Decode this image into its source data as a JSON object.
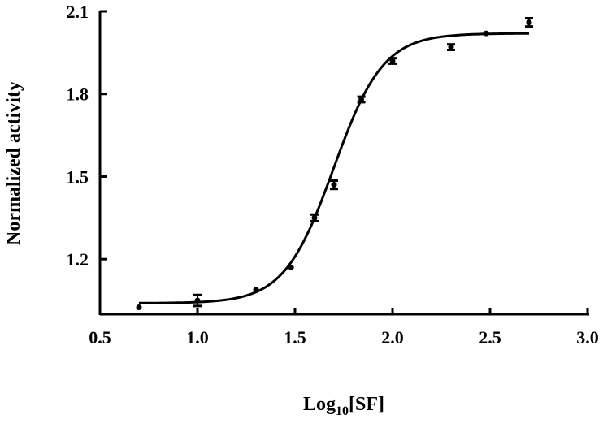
{
  "chart_data": {
    "type": "scatter",
    "title": "",
    "xlabel_main": "Log",
    "xlabel_sub": "10",
    "xlabel_rest": "[SF]",
    "ylabel": "Normalized activity",
    "xlim": [
      0.5,
      3.0
    ],
    "ylim": [
      1.0,
      2.1
    ],
    "x_ticks": [
      "0.5",
      "1.0",
      "1.5",
      "2.0",
      "2.5",
      "3.0"
    ],
    "y_ticks": [
      "1.2",
      "1.5",
      "1.8",
      "2.1"
    ],
    "grid": false,
    "points": [
      {
        "x": 0.7,
        "y": 1.025,
        "err": 0.0
      },
      {
        "x": 1.0,
        "y": 1.05,
        "err": 0.02
      },
      {
        "x": 1.3,
        "y": 1.09,
        "err": 0.0
      },
      {
        "x": 1.48,
        "y": 1.17,
        "err": 0.0
      },
      {
        "x": 1.6,
        "y": 1.35,
        "err": 0.012
      },
      {
        "x": 1.7,
        "y": 1.47,
        "err": 0.015
      },
      {
        "x": 1.84,
        "y": 1.78,
        "err": 0.01
      },
      {
        "x": 2.0,
        "y": 1.92,
        "err": 0.01
      },
      {
        "x": 2.3,
        "y": 1.97,
        "err": 0.01
      },
      {
        "x": 2.48,
        "y": 2.02,
        "err": 0.0
      },
      {
        "x": 2.7,
        "y": 2.06,
        "err": 0.015
      }
    ],
    "fit": {
      "type": "sigmoid",
      "bottom": 1.04,
      "top": 2.02,
      "x50": 1.698,
      "slope": 7.9,
      "x_range": [
        0.7,
        2.7
      ]
    }
  }
}
